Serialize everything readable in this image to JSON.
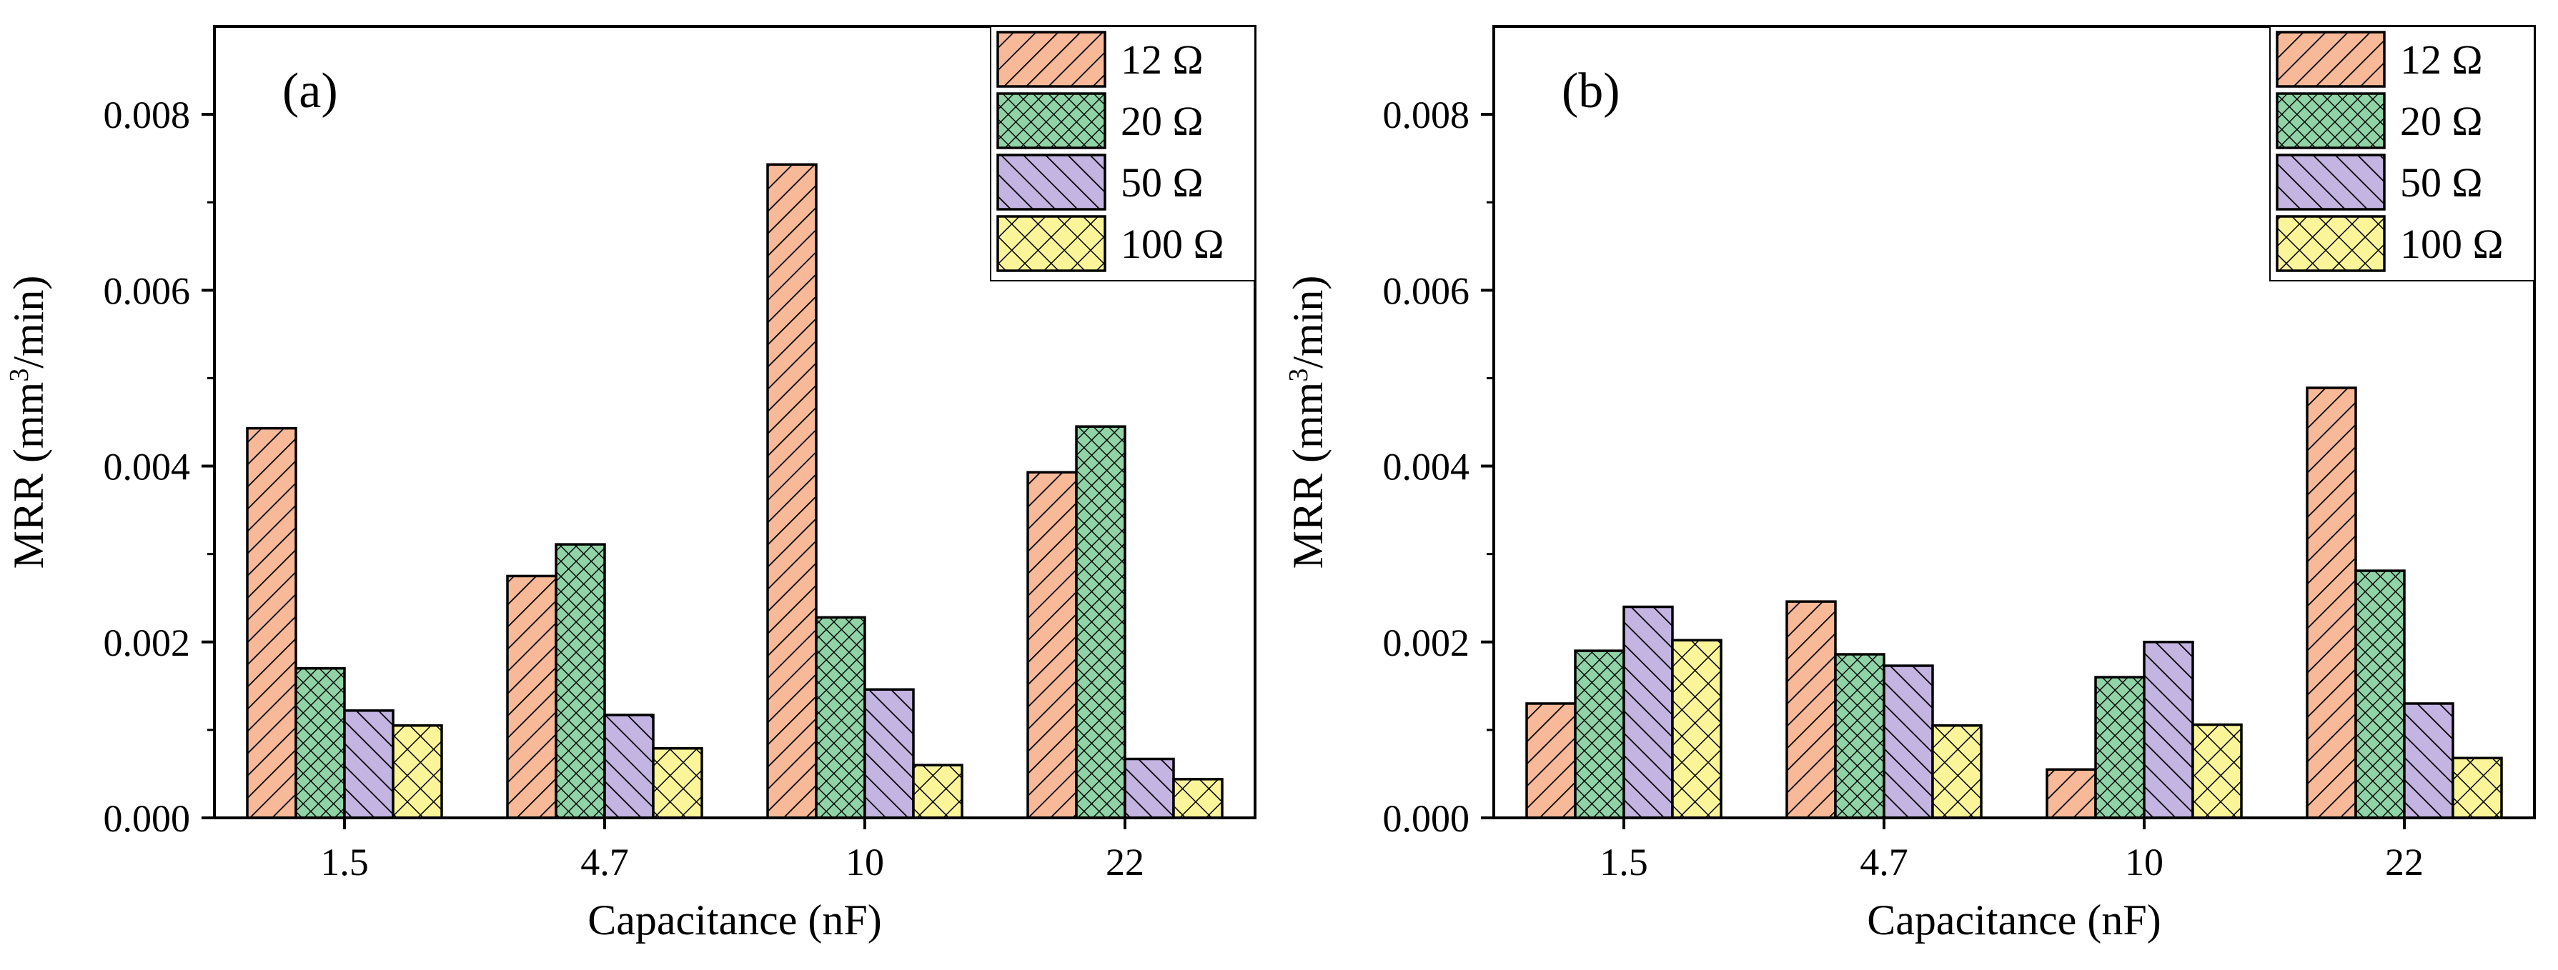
{
  "chart_data": [
    {
      "type": "bar",
      "panel_label": "(a)",
      "title": "",
      "xlabel": "Capacitance (nF)",
      "ylabel": "MRR (mm³/min)",
      "ylabel_parts": {
        "prefix": "MRR (mm",
        "superscript": "3",
        "suffix": "/min)"
      },
      "categories": [
        "1.5",
        "4.7",
        "10",
        "22"
      ],
      "ylim": [
        0,
        0.009
      ],
      "yticks": [
        0.0,
        0.002,
        0.004,
        0.006,
        0.008
      ],
      "ytick_labels": [
        "0.000",
        "0.002",
        "0.004",
        "0.006",
        "0.008"
      ],
      "legend_position": "top-right",
      "grid": false,
      "series": [
        {
          "name": "12 Ω",
          "pattern": "diag-right",
          "color": "#f8b998",
          "values": [
            0.00443,
            0.00275,
            0.00743,
            0.00393
          ]
        },
        {
          "name": "20 Ω",
          "pattern": "crosshatch-diag",
          "color": "#8fd3a6",
          "values": [
            0.0017,
            0.00311,
            0.00228,
            0.00445
          ]
        },
        {
          "name": "50 Ω",
          "pattern": "diag-left",
          "color": "#c4b4e2",
          "values": [
            0.00122,
            0.00117,
            0.00146,
            0.00067
          ]
        },
        {
          "name": "100 Ω",
          "pattern": "crosshatch-open",
          "color": "#fbf59a",
          "values": [
            0.00105,
            0.00079,
            0.0006,
            0.00044
          ]
        }
      ]
    },
    {
      "type": "bar",
      "panel_label": "(b)",
      "title": "",
      "xlabel": "Capacitance (nF)",
      "ylabel": "MRR (mm³/min)",
      "ylabel_parts": {
        "prefix": "MRR (mm",
        "superscript": "3",
        "suffix": "/min)"
      },
      "categories": [
        "1.5",
        "4.7",
        "10",
        "22"
      ],
      "ylim": [
        0,
        0.009
      ],
      "yticks": [
        0.0,
        0.002,
        0.004,
        0.006,
        0.008
      ],
      "ytick_labels": [
        "0.000",
        "0.002",
        "0.004",
        "0.006",
        "0.008"
      ],
      "legend_position": "top-right",
      "grid": false,
      "series": [
        {
          "name": "12 Ω",
          "pattern": "diag-right",
          "color": "#f8b998",
          "values": [
            0.0013,
            0.00246,
            0.00055,
            0.00489
          ]
        },
        {
          "name": "20 Ω",
          "pattern": "crosshatch-diag",
          "color": "#8fd3a6",
          "values": [
            0.0019,
            0.00186,
            0.0016,
            0.00281
          ]
        },
        {
          "name": "50 Ω",
          "pattern": "diag-left",
          "color": "#c4b4e2",
          "values": [
            0.0024,
            0.00173,
            0.002,
            0.0013
          ]
        },
        {
          "name": "100 Ω",
          "pattern": "crosshatch-open",
          "color": "#fbf59a",
          "values": [
            0.00202,
            0.00105,
            0.00106,
            0.00068
          ]
        }
      ]
    }
  ]
}
